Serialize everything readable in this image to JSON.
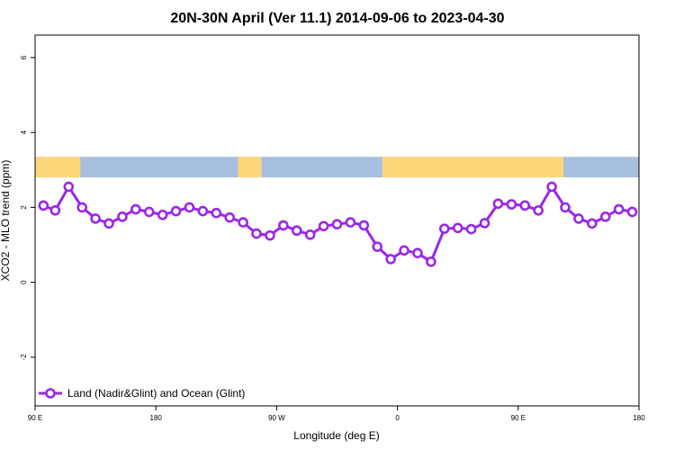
{
  "chart_data": {
    "type": "line",
    "title": "20N-30N April (Ver 11.1)   2014-09-06 to 2023-04-30",
    "xlabel": "Longitude (deg E)",
    "ylabel": "XCO2 - MLO trend (ppm)",
    "xlim": [
      90,
      450
    ],
    "ylim": [
      -3.3,
      6.6
    ],
    "x_ticks": [
      {
        "value": 90,
        "label": "90 E"
      },
      {
        "value": 162,
        "label": "180"
      },
      {
        "value": 234,
        "label": "90 W"
      },
      {
        "value": 306,
        "label": "0"
      },
      {
        "value": 378,
        "label": "90 E"
      },
      {
        "value": 450,
        "label": "180"
      }
    ],
    "y_ticks": [
      {
        "value": -2,
        "label": "-2"
      },
      {
        "value": 0,
        "label": "0"
      },
      {
        "value": 2,
        "label": "2"
      },
      {
        "value": 4,
        "label": "4"
      },
      {
        "value": 6,
        "label": "6"
      }
    ],
    "grid": false,
    "legend_position": "bottom-left",
    "map_strip": {
      "y_range": [
        2.8,
        3.35
      ],
      "ocean_color": "#a7bfdf",
      "land_color": "#fdd87a",
      "land_segments": [
        [
          90,
          117
        ],
        [
          211,
          225
        ],
        [
          297,
          405
        ]
      ]
    },
    "series": [
      {
        "name": "Land (Nadir&Glint) and Ocean (Glint)",
        "color": "#9b27e6",
        "x": [
          95,
          102,
          110,
          118,
          126,
          134,
          142,
          150,
          158,
          166,
          174,
          182,
          190,
          198,
          206,
          214,
          222,
          230,
          238,
          246,
          254,
          262,
          270,
          278,
          286,
          294,
          302,
          310,
          318,
          326,
          334,
          342,
          350,
          358,
          366,
          374,
          382,
          390,
          398,
          406,
          414,
          422,
          430,
          438,
          446
        ],
        "y": [
          2.05,
          1.92,
          2.55,
          2.0,
          1.7,
          1.57,
          1.75,
          1.95,
          1.88,
          1.8,
          1.9,
          2.0,
          1.9,
          1.85,
          1.73,
          1.6,
          1.3,
          1.25,
          1.52,
          1.38,
          1.27,
          1.5,
          1.55,
          1.6,
          1.52,
          0.95,
          0.62,
          0.85,
          0.78,
          0.55,
          1.43,
          1.45,
          1.42,
          1.58,
          2.1,
          2.08,
          2.05,
          1.92,
          2.55,
          2.0,
          1.7,
          1.57,
          1.75,
          1.95,
          1.88
        ]
      }
    ]
  }
}
